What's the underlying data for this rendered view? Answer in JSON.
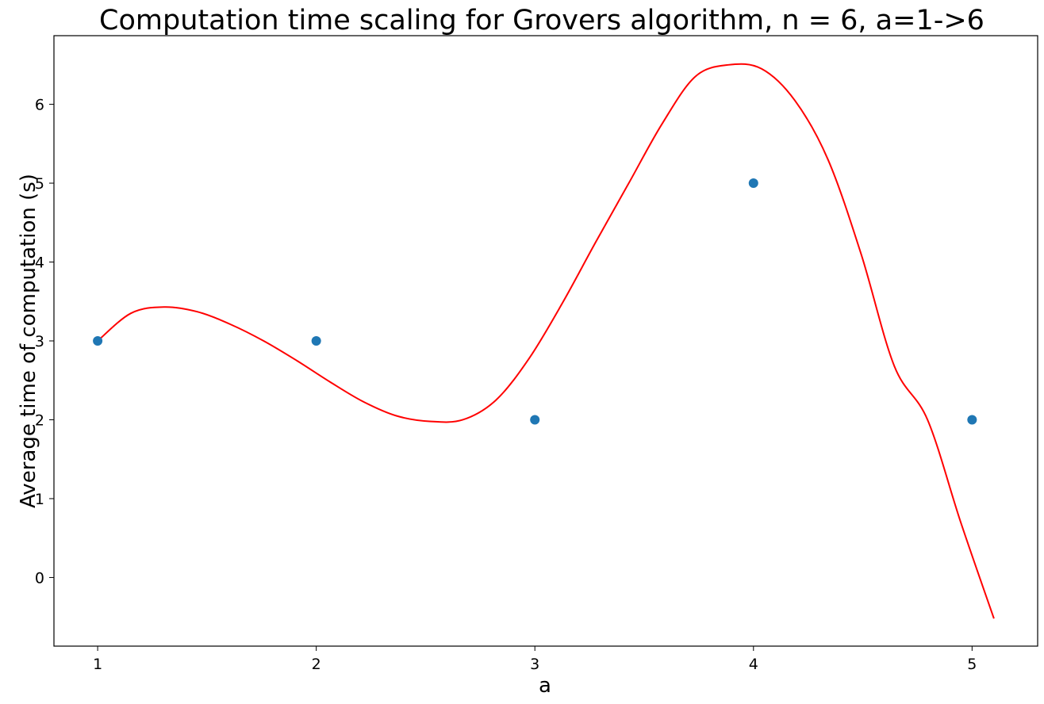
{
  "chart_data": {
    "type": "line",
    "title": "Computation time scaling for Grovers algorithm, n = 6, a=1->6",
    "xlabel": "a",
    "ylabel": "Average time of computation (s)",
    "xlim": [
      0.8,
      5.3
    ],
    "ylim": [
      -0.87,
      6.87
    ],
    "xticks": [
      1,
      2,
      3,
      4,
      5
    ],
    "yticks": [
      0,
      1,
      2,
      3,
      4,
      5,
      6
    ],
    "grid": false,
    "series": [
      {
        "kind": "scatter",
        "color": "#1f77b4",
        "x": [
          1,
          2,
          3,
          4,
          5
        ],
        "y": [
          3,
          3,
          2,
          5,
          2
        ]
      },
      {
        "kind": "line",
        "color": "#ff0000",
        "x_range": [
          1,
          5.1
        ],
        "y_samples": [
          3.0,
          3.35,
          3.43,
          3.37,
          3.21,
          3.0,
          2.75,
          2.48,
          2.23,
          2.05,
          1.98,
          2.0,
          2.25,
          2.78,
          3.48,
          4.25,
          5.0,
          5.75,
          6.35,
          6.5,
          6.45,
          6.05,
          5.3,
          4.1,
          2.68,
          2.0,
          0.7,
          -0.52
        ]
      }
    ]
  }
}
